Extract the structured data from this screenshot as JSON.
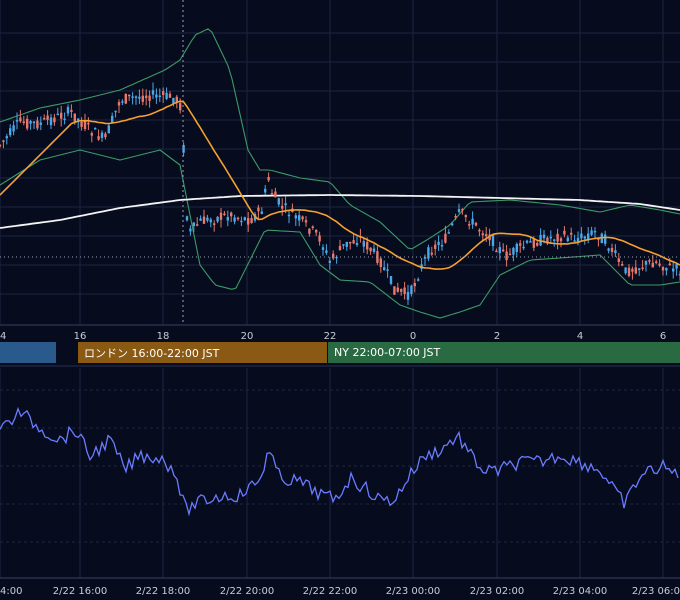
{
  "colors": {
    "background": "#070b1e",
    "grid": "#1e2442",
    "candle_up": "#4aa8e8",
    "candle_down": "#e8786a",
    "ma_short": "#f5a030",
    "ma_long": "#f4f4f4",
    "bollinger": "#3c9a66",
    "oscillator": "#6a7cff",
    "axis_text": "#c8ccd8"
  },
  "sessions": [
    {
      "id": "tokyo",
      "label": "",
      "color": "#2a5a8c"
    },
    {
      "id": "london",
      "label": "ロンドン 16:00-22:00 JST",
      "color": "#8a5a14"
    },
    {
      "id": "ny",
      "label": "NY 22:00-07:00 JST",
      "color": "#2a6a42"
    }
  ],
  "price_axis_labels": [
    "4",
    "16",
    "18",
    "20",
    "22",
    "0",
    "2",
    "4",
    "6"
  ],
  "time_axis_labels": [
    "4:00",
    "2/22 16:00",
    "2/22 18:00",
    "2/22 20:00",
    "2/22 22:00",
    "2/23 00:00",
    "2/23 02:00",
    "2/23 04:00",
    "2/23 06:0"
  ],
  "chart_data": [
    {
      "type": "candlestick",
      "title": "",
      "x_ticks": [
        "4",
        "16",
        "18",
        "20",
        "22",
        "0",
        "2",
        "4",
        "6"
      ],
      "grid": true,
      "overlays": [
        "short moving average",
        "long moving average",
        "bollinger bands"
      ],
      "series_path_description": "price rises from 15:00 to about 18:00, drops sharply at 18:20, ranges 18:20-20:00, spikes at 20:40, falls to a low around 23:50, recovers by 01:30, ranges to 04:40 then eases lower"
    },
    {
      "type": "line",
      "title": "",
      "x_ticks": [
        "4:00",
        "2/22 16:00",
        "2/22 18:00",
        "2/22 20:00",
        "2/22 22:00",
        "2/23 00:00",
        "2/23 02:00",
        "2/23 04:00",
        "2/23 06:0"
      ],
      "grid": true,
      "series_path_description": "oscillator high near 15:00, declines into 18:30, low through 19:00-21:00, rises at 20:40, lows near 23:30, peak near 01:30, mixed afterwards"
    }
  ]
}
